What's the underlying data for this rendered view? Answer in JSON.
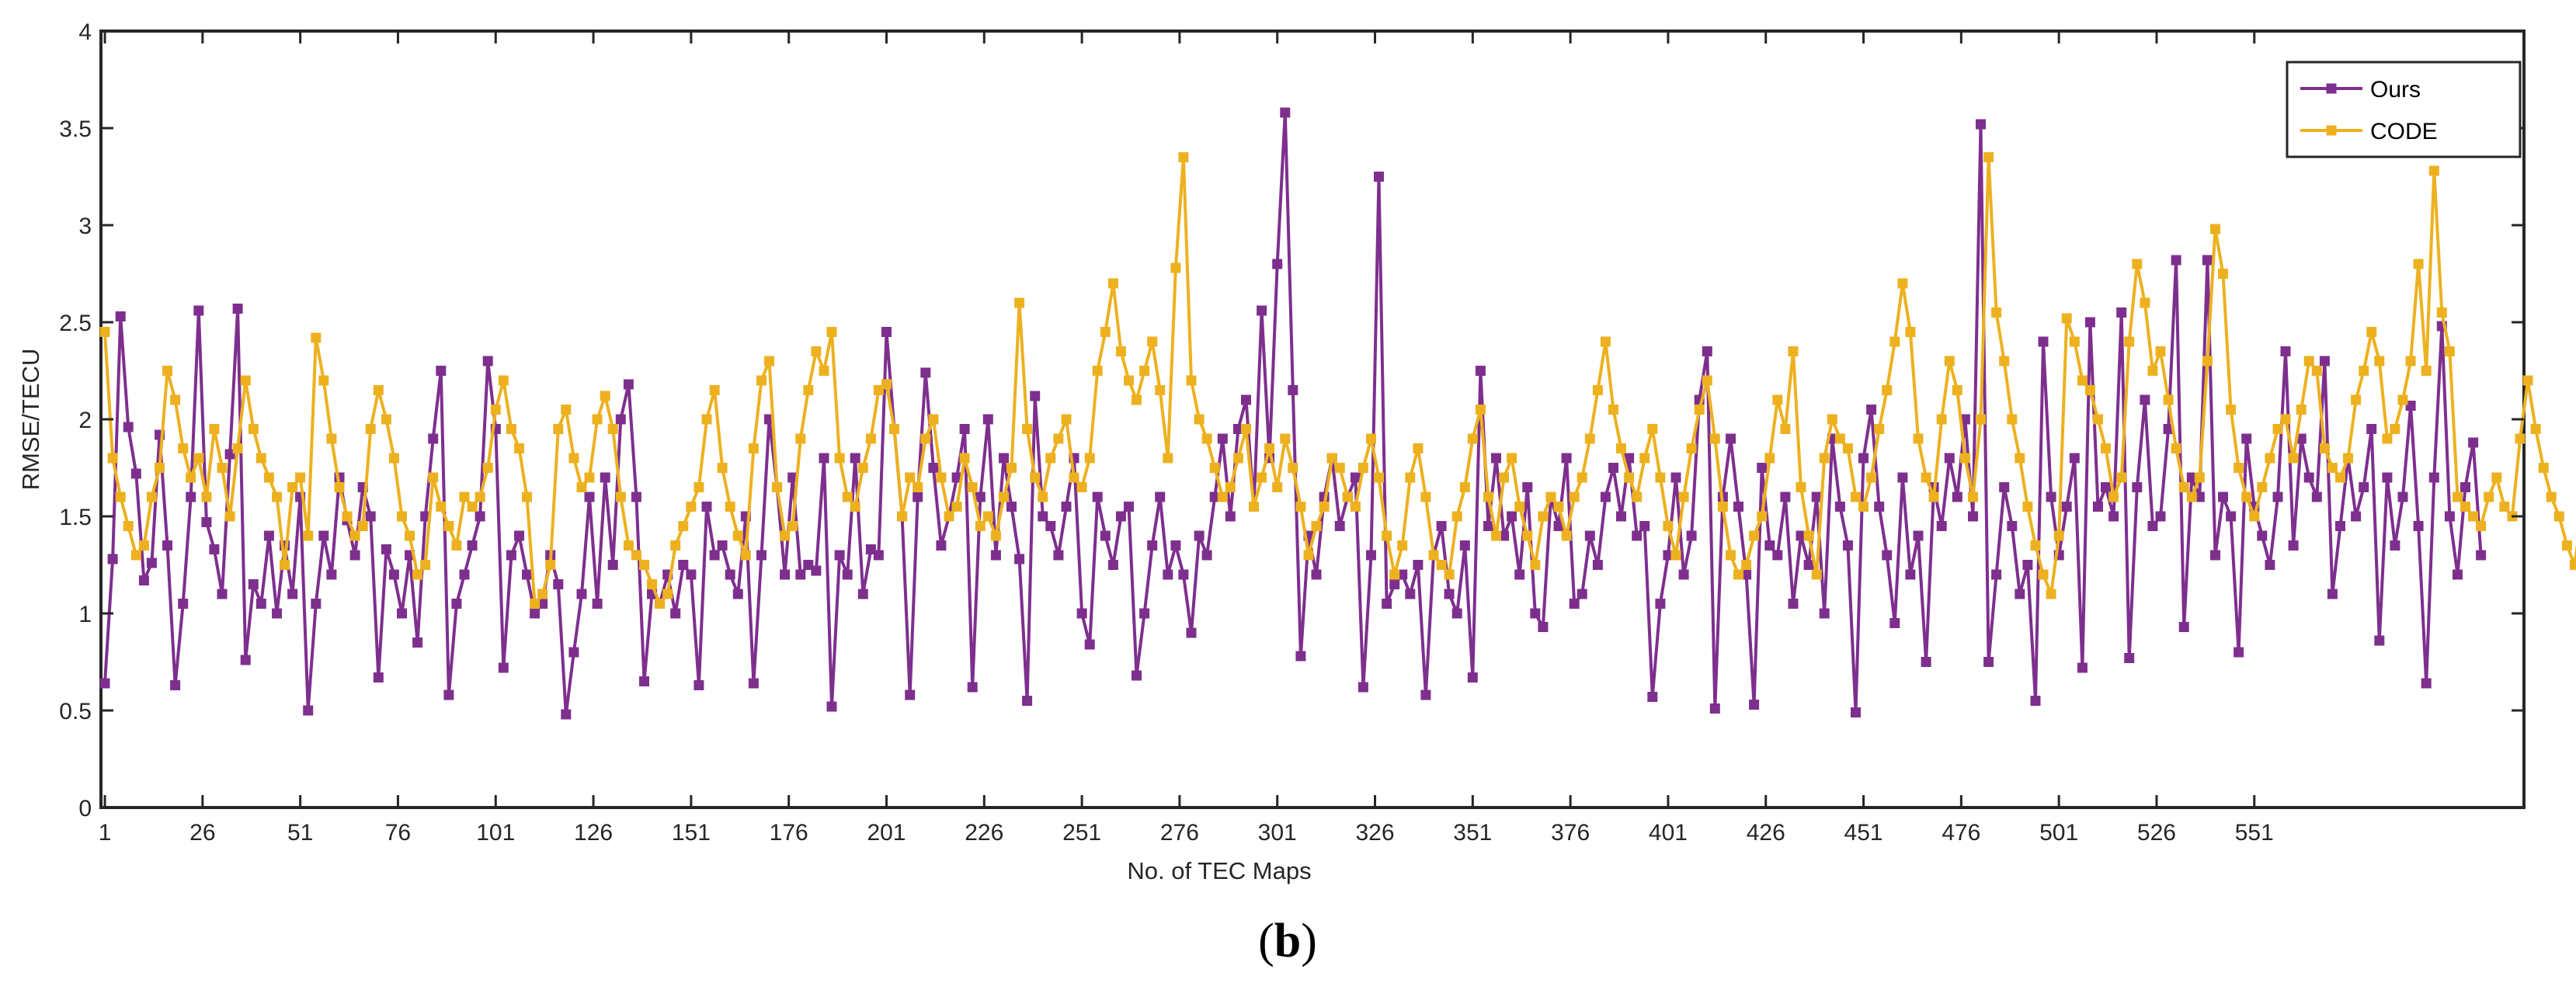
{
  "chart_data": {
    "type": "line",
    "title": "",
    "xlabel": "No. of TEC Maps",
    "ylabel": "RMSE/TECU",
    "xlim": [
      0,
      620
    ],
    "ylim": [
      0,
      4
    ],
    "xticks": [
      1,
      26,
      51,
      76,
      101,
      126,
      151,
      176,
      201,
      226,
      251,
      276,
      301,
      326,
      351,
      376,
      401,
      426,
      451,
      476,
      501,
      526,
      551
    ],
    "xtick_labels": [
      "1",
      "26",
      "51",
      "76",
      "101",
      "126",
      "151",
      "176",
      "201",
      "226",
      "251",
      "276",
      "301",
      "326",
      "351",
      "376",
      "401",
      "426",
      "451",
      "476",
      "501",
      "526",
      "551"
    ],
    "yticks": [
      0,
      0.5,
      1,
      1.5,
      2,
      2.5,
      3,
      3.5,
      4
    ],
    "ytick_labels": [
      "0",
      "0.5",
      "1",
      "1.5",
      "2",
      "2.5",
      "3",
      "3.5",
      "4"
    ],
    "grid": false,
    "legend_position": "top-right",
    "x_start": 1,
    "x_step": 2,
    "series": [
      {
        "name": "Ours",
        "color": "#7E2F8E",
        "marker": "square",
        "values": [
          0.64,
          1.28,
          2.53,
          1.96,
          1.72,
          1.17,
          1.26,
          1.92,
          1.35,
          0.63,
          1.05,
          1.6,
          2.56,
          1.47,
          1.33,
          1.1,
          1.82,
          2.57,
          0.76,
          1.15,
          1.05,
          1.4,
          1.0,
          1.35,
          1.1,
          1.6,
          0.5,
          1.05,
          1.4,
          1.2,
          1.7,
          1.48,
          1.3,
          1.65,
          1.5,
          0.67,
          1.33,
          1.2,
          1.0,
          1.3,
          0.85,
          1.5,
          1.9,
          2.25,
          0.58,
          1.05,
          1.2,
          1.35,
          1.5,
          2.3,
          1.95,
          0.72,
          1.3,
          1.4,
          1.2,
          1.0,
          1.05,
          1.3,
          1.15,
          0.48,
          0.8,
          1.1,
          1.6,
          1.05,
          1.7,
          1.25,
          2.0,
          2.18,
          1.6,
          0.65,
          1.1,
          1.05,
          1.2,
          1.0,
          1.25,
          1.2,
          0.63,
          1.55,
          1.3,
          1.35,
          1.2,
          1.1,
          1.5,
          0.64,
          1.3,
          2.0,
          1.65,
          1.2,
          1.7,
          1.2,
          1.25,
          1.22,
          1.8,
          0.52,
          1.3,
          1.2,
          1.8,
          1.1,
          1.33,
          1.3,
          2.45,
          1.95,
          1.5,
          0.58,
          1.6,
          2.24,
          1.75,
          1.35,
          1.5,
          1.7,
          1.95,
          0.62,
          1.6,
          2.0,
          1.3,
          1.8,
          1.55,
          1.28,
          0.55,
          2.12,
          1.5,
          1.45,
          1.3,
          1.55,
          1.8,
          1.0,
          0.84,
          1.6,
          1.4,
          1.25,
          1.5,
          1.55,
          0.68,
          1.0,
          1.35,
          1.6,
          1.2,
          1.35,
          1.2,
          0.9,
          1.4,
          1.3,
          1.6,
          1.9,
          1.5,
          1.95,
          2.1,
          1.55,
          2.56,
          1.8,
          2.8,
          3.58,
          2.15,
          0.78,
          1.4,
          1.2,
          1.6,
          1.8,
          1.45,
          1.6,
          1.7,
          0.62,
          1.3,
          3.25,
          1.05,
          1.15,
          1.2,
          1.1,
          1.25,
          0.58,
          1.3,
          1.45,
          1.1,
          1.0,
          1.35,
          0.67,
          2.25,
          1.45,
          1.8,
          1.4,
          1.5,
          1.2,
          1.65,
          1.0,
          0.93,
          1.6,
          1.45,
          1.8,
          1.05,
          1.1,
          1.4,
          1.25,
          1.6,
          1.75,
          1.5,
          1.8,
          1.4,
          1.45,
          0.57,
          1.05,
          1.3,
          1.7,
          1.2,
          1.4,
          2.1,
          2.35,
          0.51,
          1.6,
          1.9,
          1.55,
          1.2,
          0.53,
          1.75,
          1.35,
          1.3,
          1.6,
          1.05,
          1.4,
          1.25,
          1.6,
          1.0,
          1.9,
          1.55,
          1.35,
          0.49,
          1.8,
          2.05,
          1.55,
          1.3,
          0.95,
          1.7,
          1.2,
          1.4,
          0.75,
          1.65,
          1.45,
          1.8,
          1.6,
          2.0,
          1.5,
          3.52,
          0.75,
          1.2,
          1.65,
          1.45,
          1.1,
          1.25,
          0.55,
          2.4,
          1.6,
          1.3,
          1.55,
          1.8,
          0.72,
          2.5,
          1.55,
          1.65,
          1.5,
          2.55,
          0.77,
          1.65,
          2.1,
          1.45,
          1.5,
          1.95,
          2.82,
          0.93,
          1.7,
          1.6,
          2.82,
          1.3,
          1.6,
          1.5,
          0.8,
          1.9,
          1.55,
          1.4,
          1.25,
          1.6,
          2.35,
          1.35,
          1.9,
          1.7,
          1.6,
          2.3,
          1.1,
          1.45,
          1.8,
          1.5,
          1.65,
          1.95,
          0.86,
          1.7,
          1.35,
          1.6,
          2.07,
          1.45,
          0.64,
          1.7,
          2.48,
          1.5,
          1.2,
          1.65,
          1.88,
          1.3
        ]
      },
      {
        "name": "CODE",
        "color": "#EDB120",
        "marker": "square",
        "values": [
          2.45,
          1.8,
          1.6,
          1.45,
          1.3,
          1.35,
          1.6,
          1.75,
          2.25,
          2.1,
          1.85,
          1.7,
          1.8,
          1.6,
          1.95,
          1.75,
          1.5,
          1.85,
          2.2,
          1.95,
          1.8,
          1.7,
          1.6,
          1.25,
          1.65,
          1.7,
          1.4,
          2.42,
          2.2,
          1.9,
          1.65,
          1.5,
          1.4,
          1.45,
          1.95,
          2.15,
          2.0,
          1.8,
          1.5,
          1.4,
          1.2,
          1.25,
          1.7,
          1.55,
          1.45,
          1.35,
          1.6,
          1.55,
          1.6,
          1.75,
          2.05,
          2.2,
          1.95,
          1.85,
          1.6,
          1.05,
          1.1,
          1.25,
          1.95,
          2.05,
          1.8,
          1.65,
          1.7,
          2.0,
          2.12,
          1.95,
          1.6,
          1.35,
          1.3,
          1.25,
          1.15,
          1.05,
          1.1,
          1.35,
          1.45,
          1.55,
          1.65,
          2.0,
          2.15,
          1.75,
          1.55,
          1.4,
          1.3,
          1.85,
          2.2,
          2.3,
          1.65,
          1.4,
          1.45,
          1.9,
          2.15,
          2.35,
          2.25,
          2.45,
          1.8,
          1.6,
          1.55,
          1.75,
          1.9,
          2.15,
          2.18,
          1.95,
          1.5,
          1.7,
          1.65,
          1.9,
          2.0,
          1.7,
          1.5,
          1.55,
          1.8,
          1.65,
          1.45,
          1.5,
          1.4,
          1.6,
          1.75,
          2.6,
          1.95,
          1.7,
          1.6,
          1.8,
          1.9,
          2.0,
          1.7,
          1.65,
          1.8,
          2.25,
          2.45,
          2.7,
          2.35,
          2.2,
          2.1,
          2.25,
          2.4,
          2.15,
          1.8,
          2.78,
          3.35,
          2.2,
          2.0,
          1.9,
          1.75,
          1.6,
          1.65,
          1.8,
          1.95,
          1.55,
          1.7,
          1.85,
          1.65,
          1.9,
          1.75,
          1.55,
          1.3,
          1.45,
          1.55,
          1.8,
          1.75,
          1.6,
          1.55,
          1.75,
          1.9,
          1.7,
          1.4,
          1.2,
          1.35,
          1.7,
          1.85,
          1.6,
          1.3,
          1.25,
          1.2,
          1.5,
          1.65,
          1.9,
          2.05,
          1.6,
          1.4,
          1.7,
          1.8,
          1.55,
          1.4,
          1.25,
          1.5,
          1.6,
          1.55,
          1.4,
          1.6,
          1.7,
          1.9,
          2.15,
          2.4,
          2.05,
          1.85,
          1.7,
          1.6,
          1.8,
          1.95,
          1.7,
          1.45,
          1.3,
          1.6,
          1.85,
          2.05,
          2.2,
          1.9,
          1.55,
          1.3,
          1.2,
          1.25,
          1.4,
          1.5,
          1.8,
          2.1,
          1.95,
          2.35,
          1.65,
          1.4,
          1.2,
          1.8,
          2.0,
          1.9,
          1.85,
          1.6,
          1.55,
          1.7,
          1.95,
          2.15,
          2.4,
          2.7,
          2.45,
          1.9,
          1.7,
          1.6,
          2.0,
          2.3,
          2.15,
          1.8,
          1.6,
          2.0,
          3.35,
          2.55,
          2.3,
          2.0,
          1.8,
          1.55,
          1.35,
          1.2,
          1.1,
          1.4,
          2.52,
          2.4,
          2.2,
          2.15,
          2.0,
          1.85,
          1.6,
          1.7,
          2.4,
          2.8,
          2.6,
          2.25,
          2.35,
          2.1,
          1.85,
          1.65,
          1.6,
          1.7,
          2.3,
          2.98,
          2.75,
          2.05,
          1.75,
          1.6,
          1.5,
          1.65,
          1.8,
          1.95,
          2.0,
          1.8,
          2.05,
          2.3,
          2.25,
          1.85,
          1.75,
          1.7,
          1.8,
          2.1,
          2.25,
          2.45,
          2.3,
          1.9,
          1.95,
          2.1,
          2.3,
          2.8,
          2.25,
          3.28,
          2.55,
          2.35,
          1.6,
          1.55,
          1.5,
          1.45,
          1.6,
          1.7,
          1.55,
          1.5,
          1.9,
          2.2,
          1.95,
          1.75,
          1.6,
          1.5,
          1.35,
          1.25,
          1.55,
          1.72,
          1.7,
          1.6,
          1.45,
          1.35,
          1.25,
          1.15,
          1.14
        ]
      }
    ]
  },
  "caption": {
    "open": "(",
    "letter": "b",
    "close": ")"
  }
}
